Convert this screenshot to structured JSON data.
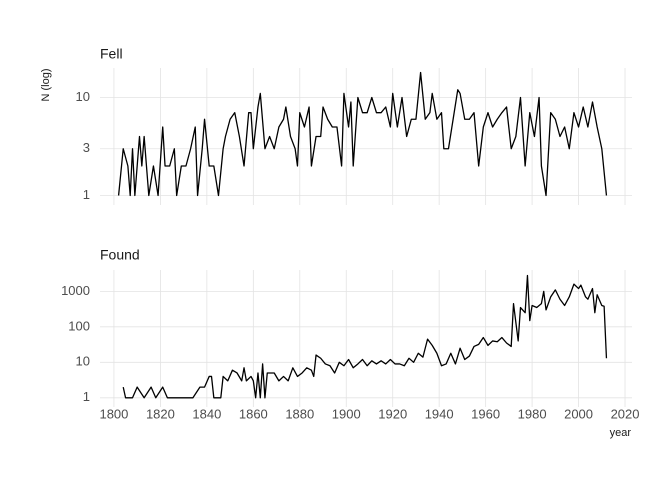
{
  "chart_data": [
    {
      "type": "line",
      "title": "Fell",
      "y_label": "N (log)",
      "log_y": true,
      "grid": true,
      "color": "#000000",
      "x": [
        1802,
        1804,
        1806,
        1807,
        1808,
        1809,
        1811,
        1812,
        1813,
        1815,
        1817,
        1819,
        1821,
        1822,
        1824,
        1826,
        1827,
        1829,
        1831,
        1833,
        1835,
        1836,
        1838,
        1839,
        1841,
        1843,
        1845,
        1847,
        1848,
        1850,
        1852,
        1854,
        1856,
        1858,
        1859,
        1860,
        1862,
        1863,
        1865,
        1867,
        1869,
        1871,
        1873,
        1874,
        1876,
        1878,
        1879,
        1880,
        1882,
        1884,
        1885,
        1887,
        1889,
        1890,
        1892,
        1894,
        1896,
        1898,
        1899,
        1901,
        1902,
        1903,
        1905,
        1907,
        1909,
        1911,
        1913,
        1915,
        1917,
        1919,
        1920,
        1922,
        1924,
        1926,
        1928,
        1930,
        1932,
        1934,
        1936,
        1937,
        1939,
        1941,
        1942,
        1944,
        1946,
        1948,
        1949,
        1951,
        1953,
        1955,
        1957,
        1959,
        1961,
        1963,
        1965,
        1967,
        1969,
        1971,
        1973,
        1975,
        1977,
        1979,
        1981,
        1983,
        1984,
        1986,
        1988,
        1990,
        1992,
        1994,
        1996,
        1998,
        2000,
        2002,
        2004,
        2006,
        2008,
        2010,
        2012
      ],
      "values": [
        1,
        3,
        2,
        1,
        3,
        1,
        4,
        2,
        4,
        1,
        2,
        1,
        5,
        2,
        2,
        3,
        1,
        2,
        2,
        3,
        5,
        1,
        3,
        6,
        2,
        2,
        1,
        3,
        4,
        6,
        7,
        4,
        2,
        7,
        7,
        3,
        8,
        11,
        3,
        4,
        3,
        5,
        6,
        8,
        4,
        3,
        2,
        7,
        5,
        8,
        2,
        4,
        4,
        8,
        6,
        5,
        5,
        2,
        11,
        5,
        9,
        2,
        10,
        7,
        7,
        10,
        7,
        7,
        8,
        5,
        11,
        5,
        10,
        4,
        6,
        6,
        18,
        6,
        7,
        11,
        6,
        7,
        3,
        3,
        6,
        12,
        11,
        6,
        6,
        7,
        2,
        5,
        7,
        5,
        6,
        7,
        8,
        3,
        4,
        10,
        2,
        7,
        4,
        10,
        2,
        1,
        7,
        6,
        4,
        5,
        3,
        7,
        5,
        8,
        5,
        9,
        5,
        3,
        1
      ],
      "xlim": [
        1794,
        2023
      ],
      "ylim": [
        0.8,
        20
      ],
      "yticks": [
        1,
        3,
        10
      ]
    },
    {
      "type": "line",
      "title": "Found",
      "x_label": "year",
      "log_y": true,
      "grid": true,
      "color": "#000000",
      "x": [
        1804,
        1805,
        1808,
        1810,
        1813,
        1816,
        1818,
        1821,
        1823,
        1827,
        1830,
        1834,
        1837,
        1839,
        1841,
        1842,
        1843,
        1846,
        1847,
        1849,
        1851,
        1853,
        1855,
        1856,
        1857,
        1859,
        1860,
        1861,
        1862,
        1863,
        1864,
        1865,
        1866,
        1869,
        1871,
        1873,
        1875,
        1877,
        1879,
        1881,
        1883,
        1885,
        1886,
        1887,
        1889,
        1891,
        1893,
        1895,
        1897,
        1899,
        1901,
        1903,
        1905,
        1907,
        1909,
        1911,
        1913,
        1915,
        1917,
        1919,
        1921,
        1923,
        1925,
        1927,
        1929,
        1931,
        1933,
        1935,
        1937,
        1939,
        1941,
        1943,
        1945,
        1947,
        1949,
        1951,
        1953,
        1955,
        1957,
        1959,
        1961,
        1963,
        1965,
        1967,
        1969,
        1971,
        1972,
        1974,
        1975,
        1977,
        1978,
        1979,
        1980,
        1982,
        1984,
        1985,
        1986,
        1988,
        1990,
        1992,
        1994,
        1996,
        1998,
        2000,
        2001,
        2003,
        2004,
        2006,
        2007,
        2008,
        2010,
        2011,
        2012
      ],
      "values": [
        2,
        1,
        1,
        2,
        1,
        2,
        1,
        2,
        1,
        1,
        1,
        1,
        2,
        2,
        4,
        4,
        1,
        1,
        4,
        3,
        6,
        5,
        3,
        7,
        3,
        4,
        3,
        1,
        5,
        1,
        9,
        1,
        5,
        5,
        3,
        4,
        3,
        7,
        4,
        5,
        7,
        6,
        4,
        16,
        13,
        9,
        8,
        5,
        10,
        8,
        12,
        7,
        9,
        12,
        8,
        11,
        9,
        11,
        9,
        12,
        9,
        9,
        8,
        13,
        10,
        18,
        14,
        45,
        30,
        18,
        8,
        9,
        18,
        9,
        25,
        12,
        15,
        28,
        32,
        50,
        30,
        40,
        38,
        50,
        35,
        28,
        450,
        40,
        350,
        250,
        2800,
        150,
        400,
        350,
        450,
        1000,
        300,
        700,
        1100,
        600,
        400,
        700,
        1600,
        1200,
        1500,
        700,
        600,
        1200,
        250,
        800,
        400,
        380,
        13
      ],
      "xlim": [
        1794,
        2023
      ],
      "ylim": [
        0.55,
        4000
      ],
      "yticks": [
        1,
        10,
        100,
        1000
      ],
      "xticks": [
        1800,
        1820,
        1840,
        1860,
        1880,
        1900,
        1920,
        1940,
        1960,
        1980,
        2000,
        2020
      ]
    }
  ]
}
